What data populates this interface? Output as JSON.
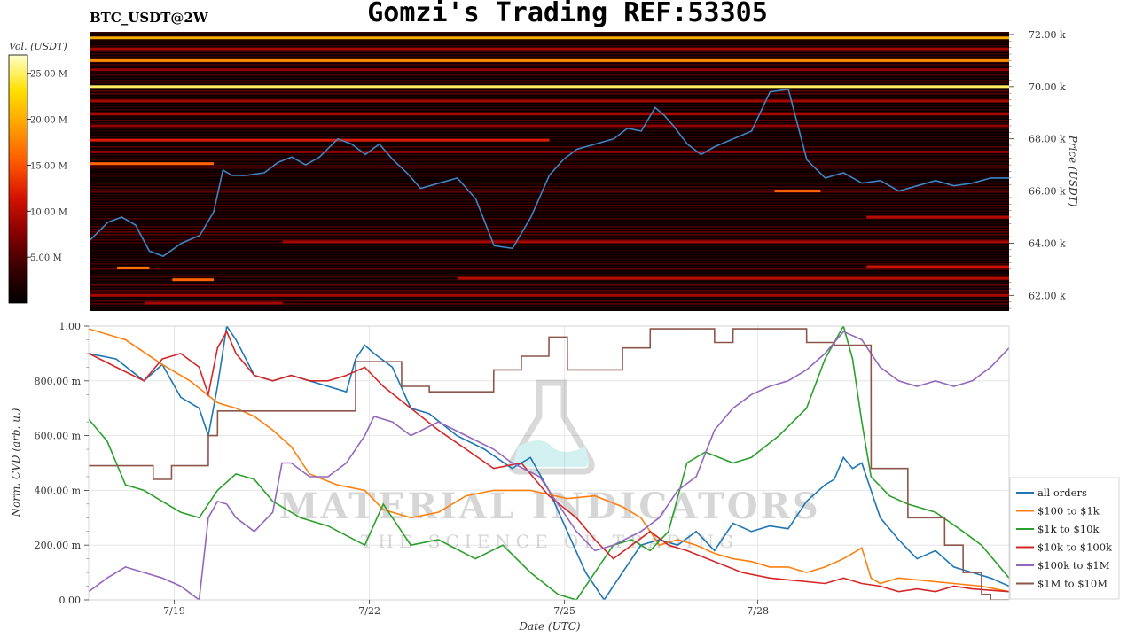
{
  "header": {
    "title": "Gomzi's Trading REF:53305",
    "symbol": "BTC_USDT@2W"
  },
  "colors": {
    "heatmap_scale": [
      "#000000",
      "#3a0000",
      "#8a0000",
      "#d61400",
      "#ff5a00",
      "#ffa000",
      "#ffe000",
      "#ffffcc"
    ],
    "price_line": "#3a86c8",
    "grid": "#e6e6e6"
  },
  "watermark": {
    "line1": "MATERIAL INDICATORS",
    "line2": "THE SCIENCE OF TRADING",
    "icon": "flask-icon"
  },
  "chart_data": [
    {
      "type": "heatmap",
      "title": "",
      "ylabel": "Price (USDT)",
      "ytick_labels": [
        "62.00 k",
        "64.00 k",
        "66.00 k",
        "68.00 k",
        "70.00 k",
        "72.00 k"
      ],
      "ytick_values": [
        62000,
        64000,
        66000,
        68000,
        70000,
        72000
      ],
      "ylim": [
        61400,
        72100
      ],
      "xlim": [
        0,
        100
      ],
      "colorbar": {
        "label": "Vol. (USDT)",
        "tick_labels": [
          "5.00 M",
          "10.00 M",
          "15.00 M",
          "20.00 M",
          "25.00 M"
        ],
        "tick_values": [
          5,
          10,
          15,
          20,
          25
        ],
        "range": [
          0,
          27
        ]
      },
      "price_series": {
        "x": [
          0,
          2,
          3.5,
          5,
          6.5,
          8,
          10,
          12,
          13.5,
          14.5,
          15.5,
          17,
          19,
          20.5,
          22,
          23.5,
          25,
          27,
          28.5,
          30,
          31.5,
          33,
          34.5,
          36,
          38,
          40,
          42,
          44,
          46,
          48,
          50,
          51.5,
          53,
          55,
          57,
          58.5,
          60,
          61.5,
          62.5,
          63.5,
          65,
          66.5,
          68,
          70,
          72,
          74,
          76,
          78,
          80,
          82,
          84,
          86,
          88,
          90,
          92,
          93,
          94,
          96,
          98,
          100
        ],
        "y": [
          64100,
          64800,
          65000,
          64700,
          63700,
          63500,
          64000,
          64300,
          65200,
          66800,
          66600,
          66600,
          66700,
          67100,
          67300,
          67000,
          67300,
          68000,
          67800,
          67400,
          67800,
          67200,
          66700,
          66100,
          66300,
          66500,
          65700,
          63900,
          63800,
          65000,
          66600,
          67200,
          67600,
          67800,
          68000,
          68400,
          68300,
          69200,
          68900,
          68500,
          67800,
          67400,
          67700,
          68000,
          68300,
          69800,
          69900,
          67200,
          66500,
          66700,
          66300,
          66400,
          66000,
          66200,
          66400,
          66300,
          66200,
          66300,
          66500,
          66500
        ]
      },
      "levels": [
        {
          "price": 71870,
          "x0": 0,
          "x1": 100,
          "vol": 20
        },
        {
          "price": 71450,
          "x0": 0,
          "x1": 100,
          "vol": 9
        },
        {
          "price": 71000,
          "x0": 0,
          "x1": 100,
          "vol": 18
        },
        {
          "price": 70650,
          "x0": 0,
          "x1": 100,
          "vol": 8
        },
        {
          "price": 70000,
          "x0": 0,
          "x1": 100,
          "vol": 25
        },
        {
          "price": 69450,
          "x0": 0,
          "x1": 100,
          "vol": 9
        },
        {
          "price": 68950,
          "x0": 0,
          "x1": 100,
          "vol": 9
        },
        {
          "price": 68500,
          "x0": 0,
          "x1": 100,
          "vol": 8
        },
        {
          "price": 67950,
          "x0": 0,
          "x1": 50,
          "vol": 12
        },
        {
          "price": 67500,
          "x0": 0,
          "x1": 100,
          "vol": 8
        },
        {
          "price": 67050,
          "x0": 0,
          "x1": 13.5,
          "vol": 16
        },
        {
          "price": 64050,
          "x0": 21,
          "x1": 100,
          "vol": 9
        },
        {
          "price": 63050,
          "x0": 3,
          "x1": 6.5,
          "vol": 17
        },
        {
          "price": 62600,
          "x0": 9,
          "x1": 13.5,
          "vol": 16
        },
        {
          "price": 62000,
          "x0": 0,
          "x1": 100,
          "vol": 9
        },
        {
          "price": 61700,
          "x0": 6,
          "x1": 21,
          "vol": 9
        },
        {
          "price": 66000,
          "x0": 74.5,
          "x1": 79.5,
          "vol": 16
        },
        {
          "price": 65000,
          "x0": 84.5,
          "x1": 100,
          "vol": 10
        },
        {
          "price": 63100,
          "x0": 84.5,
          "x1": 100,
          "vol": 11
        },
        {
          "price": 62650,
          "x0": 40,
          "x1": 100,
          "vol": 10
        }
      ]
    },
    {
      "type": "line",
      "title": "",
      "xlabel": "Date (UTC)",
      "ylabel": "Norm. CVD (arb. u.)",
      "ylim": [
        0,
        1
      ],
      "xlim": [
        0,
        100
      ],
      "xtick_labels": [
        "7/19",
        "7/22",
        "7/25",
        "7/28"
      ],
      "xtick_values": [
        9.3,
        30.5,
        51.7,
        72.7
      ],
      "ytick_labels": [
        "0.00",
        "200.00 m",
        "400.00 m",
        "600.00 m",
        "800.00 m",
        "1.00"
      ],
      "ytick_values": [
        0,
        0.2,
        0.4,
        0.6,
        0.8,
        1.0
      ],
      "legend_position": "right",
      "series": [
        {
          "name": "all orders",
          "color": "#1f77b4",
          "x": [
            0,
            3,
            6,
            8,
            10,
            12,
            13,
            14,
            15,
            16,
            18,
            20,
            22,
            24,
            26,
            28,
            29,
            30,
            31,
            33,
            35,
            37,
            40,
            43,
            46,
            48,
            50,
            52,
            54,
            56,
            58,
            60,
            62,
            64,
            66,
            68,
            70,
            72,
            74,
            76,
            78,
            80,
            81,
            82,
            83,
            84,
            86,
            88,
            90,
            92,
            94,
            96,
            98,
            100
          ],
          "y": [
            0.9,
            0.88,
            0.8,
            0.86,
            0.74,
            0.7,
            0.6,
            0.78,
            1.0,
            0.95,
            0.82,
            0.8,
            0.82,
            0.8,
            0.78,
            0.76,
            0.88,
            0.93,
            0.9,
            0.85,
            0.7,
            0.68,
            0.6,
            0.55,
            0.48,
            0.52,
            0.4,
            0.25,
            0.1,
            0.0,
            0.1,
            0.2,
            0.22,
            0.2,
            0.25,
            0.18,
            0.28,
            0.25,
            0.27,
            0.26,
            0.36,
            0.42,
            0.44,
            0.52,
            0.48,
            0.5,
            0.3,
            0.22,
            0.15,
            0.18,
            0.12,
            0.1,
            0.08,
            0.05
          ]
        },
        {
          "name": "$100 to $1k",
          "color": "#ff7f0e",
          "x": [
            0,
            4,
            8,
            11,
            14,
            16,
            18,
            20,
            22,
            24,
            27,
            30,
            32,
            35,
            38,
            41,
            44,
            48,
            52,
            55,
            58,
            60,
            62,
            64,
            66,
            68,
            70,
            72,
            74,
            76,
            78,
            80,
            82,
            84,
            85,
            86,
            88,
            91,
            94,
            97,
            100
          ],
          "y": [
            0.99,
            0.95,
            0.86,
            0.8,
            0.72,
            0.7,
            0.67,
            0.62,
            0.56,
            0.46,
            0.42,
            0.4,
            0.33,
            0.3,
            0.32,
            0.38,
            0.4,
            0.4,
            0.37,
            0.38,
            0.34,
            0.3,
            0.2,
            0.22,
            0.2,
            0.17,
            0.15,
            0.14,
            0.12,
            0.12,
            0.1,
            0.12,
            0.15,
            0.19,
            0.08,
            0.06,
            0.08,
            0.07,
            0.06,
            0.05,
            0.03
          ]
        },
        {
          "name": "$1k to $10k",
          "color": "#2ca02c",
          "x": [
            0,
            2,
            4,
            6,
            8,
            10,
            12,
            14,
            16,
            18,
            20,
            23,
            26,
            30,
            32,
            35,
            38,
            42,
            45,
            48,
            51,
            53,
            55,
            57,
            59,
            61,
            63,
            65,
            67,
            70,
            72,
            75,
            78,
            80,
            82,
            83,
            84,
            85,
            87,
            89,
            92,
            95,
            97,
            100
          ],
          "y": [
            0.66,
            0.58,
            0.42,
            0.4,
            0.36,
            0.32,
            0.3,
            0.4,
            0.46,
            0.44,
            0.36,
            0.3,
            0.27,
            0.2,
            0.35,
            0.2,
            0.22,
            0.15,
            0.2,
            0.1,
            0.02,
            0.0,
            0.1,
            0.2,
            0.22,
            0.18,
            0.25,
            0.5,
            0.54,
            0.5,
            0.52,
            0.6,
            0.7,
            0.88,
            1.0,
            0.88,
            0.65,
            0.45,
            0.38,
            0.35,
            0.32,
            0.25,
            0.2,
            0.08
          ]
        },
        {
          "name": "$10k to $100k",
          "color": "#d62728",
          "x": [
            0,
            3,
            6,
            8,
            10,
            12,
            13,
            14,
            15,
            16,
            18,
            20,
            22,
            24,
            26,
            28,
            30,
            32,
            35,
            38,
            41,
            44,
            47,
            50,
            53,
            55,
            57,
            59,
            61,
            63,
            65,
            68,
            71,
            74,
            77,
            80,
            82,
            84,
            86,
            88,
            90,
            92,
            94,
            96,
            100
          ],
          "y": [
            0.9,
            0.85,
            0.8,
            0.88,
            0.9,
            0.85,
            0.75,
            0.92,
            0.98,
            0.9,
            0.82,
            0.8,
            0.82,
            0.8,
            0.8,
            0.82,
            0.85,
            0.78,
            0.7,
            0.62,
            0.55,
            0.48,
            0.5,
            0.38,
            0.3,
            0.22,
            0.15,
            0.2,
            0.25,
            0.2,
            0.18,
            0.14,
            0.1,
            0.08,
            0.07,
            0.06,
            0.08,
            0.06,
            0.05,
            0.03,
            0.04,
            0.03,
            0.05,
            0.04,
            0.03
          ]
        },
        {
          "name": "$100k to $1M",
          "color": "#9467bd",
          "x": [
            0,
            2,
            4,
            6,
            8,
            10,
            12,
            13,
            14,
            15,
            16,
            18,
            20,
            21,
            22,
            24,
            26,
            28,
            30,
            31,
            33,
            35,
            38,
            41,
            44,
            46,
            49,
            51,
            53,
            55,
            57,
            60,
            62,
            64,
            66,
            68,
            70,
            72,
            74,
            76,
            78,
            80,
            82,
            84,
            86,
            88,
            90,
            92,
            94,
            96,
            98,
            100
          ],
          "y": [
            0.03,
            0.08,
            0.12,
            0.1,
            0.08,
            0.05,
            0.0,
            0.3,
            0.36,
            0.35,
            0.3,
            0.25,
            0.32,
            0.5,
            0.5,
            0.45,
            0.45,
            0.5,
            0.6,
            0.67,
            0.65,
            0.6,
            0.65,
            0.6,
            0.55,
            0.5,
            0.45,
            0.35,
            0.25,
            0.18,
            0.2,
            0.25,
            0.3,
            0.4,
            0.45,
            0.62,
            0.7,
            0.75,
            0.78,
            0.8,
            0.84,
            0.9,
            0.98,
            0.95,
            0.85,
            0.8,
            0.78,
            0.8,
            0.78,
            0.8,
            0.85,
            0.92
          ]
        },
        {
          "name": "$1M to $10M",
          "color": "#8c564b",
          "x": [
            0,
            7,
            7.01,
            9,
            9.01,
            13,
            13.01,
            14,
            14.01,
            22,
            22.01,
            29,
            29.01,
            30,
            30.01,
            34,
            34.01,
            37,
            37.01,
            44,
            44.01,
            47,
            47.01,
            50,
            50.01,
            52,
            52.01,
            53,
            53.01,
            58,
            58.01,
            61,
            61.01,
            68,
            68.01,
            70,
            70.01,
            78,
            78.01,
            81,
            81.01,
            85,
            85.01,
            89,
            89.01,
            93,
            93.01,
            95,
            95.01,
            97,
            97.01,
            98,
            98.01,
            100
          ],
          "y": [
            0.49,
            0.49,
            0.44,
            0.44,
            0.49,
            0.49,
            0.6,
            0.6,
            0.69,
            0.69,
            0.69,
            0.69,
            0.87,
            0.87,
            0.87,
            0.87,
            0.78,
            0.78,
            0.76,
            0.76,
            0.84,
            0.84,
            0.89,
            0.89,
            0.96,
            0.96,
            0.84,
            0.84,
            0.84,
            0.84,
            0.92,
            0.92,
            0.99,
            0.99,
            0.94,
            0.94,
            0.99,
            0.99,
            0.94,
            0.94,
            0.93,
            0.93,
            0.48,
            0.48,
            0.3,
            0.3,
            0.2,
            0.2,
            0.1,
            0.1,
            0.02,
            0.02,
            0.0,
            0.0
          ]
        }
      ]
    }
  ]
}
